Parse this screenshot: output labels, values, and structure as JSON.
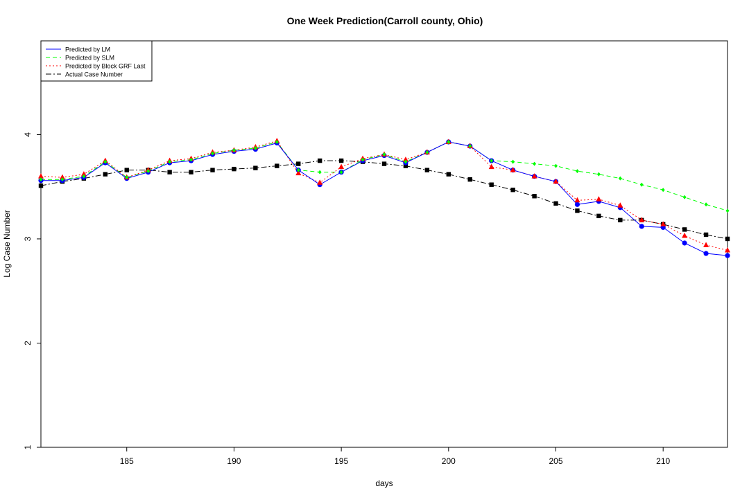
{
  "chart_data": {
    "type": "line",
    "title": "One Week Prediction(Carroll county, Ohio)",
    "xlabel": "days",
    "ylabel": "Log Case Number",
    "xlim": [
      181,
      213
    ],
    "ylim": [
      1,
      4.9
    ],
    "xticks": [
      185,
      190,
      195,
      200,
      205,
      210
    ],
    "yticks": [
      1,
      2,
      3,
      4
    ],
    "grid": false,
    "legend_position": "top-left",
    "x": [
      181,
      182,
      183,
      184,
      185,
      186,
      187,
      188,
      189,
      190,
      191,
      192,
      193,
      194,
      195,
      196,
      197,
      198,
      199,
      200,
      201,
      202,
      203,
      204,
      205,
      206,
      207,
      208,
      209,
      210,
      211,
      212,
      213
    ],
    "series": [
      {
        "name": "Predicted by LM",
        "color": "#0000ff",
        "dash": "",
        "marker": "circle",
        "marker_color": "#0000ff",
        "values": [
          3.56,
          3.56,
          3.59,
          3.73,
          3.58,
          3.64,
          3.73,
          3.75,
          3.81,
          3.84,
          3.86,
          3.92,
          3.66,
          3.52,
          3.64,
          3.75,
          3.8,
          3.73,
          3.83,
          3.93,
          3.89,
          3.75,
          3.66,
          3.6,
          3.55,
          3.33,
          3.36,
          3.3,
          3.12,
          3.11,
          2.96,
          2.86,
          2.84
        ]
      },
      {
        "name": "Predicted by SLM",
        "color": "#00ff00",
        "dash": "6,4",
        "marker": "diamond",
        "marker_color": "#00ff00",
        "values": [
          3.57,
          3.57,
          3.6,
          3.74,
          3.59,
          3.65,
          3.74,
          3.76,
          3.82,
          3.85,
          3.87,
          3.93,
          3.66,
          3.64,
          3.64,
          3.76,
          3.81,
          3.74,
          3.83,
          3.93,
          3.89,
          3.75,
          3.74,
          3.72,
          3.7,
          3.65,
          3.62,
          3.58,
          3.52,
          3.47,
          3.4,
          3.33,
          3.27
        ]
      },
      {
        "name": "Predicted by Block GRF Last",
        "color": "#ff0000",
        "dash": "2,3",
        "marker": "triangle",
        "marker_color": "#ff0000",
        "values": [
          3.6,
          3.59,
          3.62,
          3.75,
          3.59,
          3.66,
          3.75,
          3.77,
          3.83,
          3.85,
          3.88,
          3.94,
          3.63,
          3.54,
          3.69,
          3.77,
          3.81,
          3.76,
          3.83,
          3.93,
          3.89,
          3.69,
          3.66,
          3.6,
          3.55,
          3.37,
          3.38,
          3.32,
          3.18,
          3.14,
          3.03,
          2.94,
          2.89
        ]
      },
      {
        "name": "Actual Case Number",
        "color": "#000000",
        "dash": "8,3,2,3",
        "marker": "square",
        "marker_color": "#000000",
        "values": [
          3.51,
          3.55,
          3.58,
          3.62,
          3.66,
          3.66,
          3.64,
          3.64,
          3.66,
          3.67,
          3.68,
          3.7,
          3.72,
          3.75,
          3.75,
          3.74,
          3.72,
          3.7,
          3.66,
          3.62,
          3.57,
          3.52,
          3.47,
          3.41,
          3.34,
          3.27,
          3.22,
          3.18,
          3.18,
          3.14,
          3.09,
          3.04,
          3.0
        ]
      }
    ]
  }
}
